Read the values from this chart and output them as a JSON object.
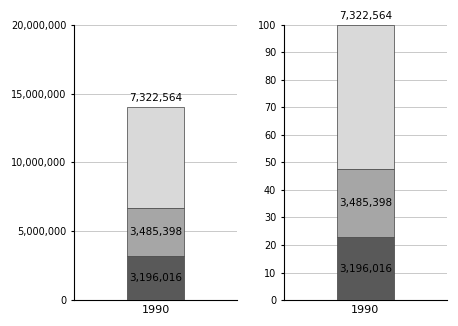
{
  "values": [
    3196016,
    3485398,
    7322564
  ],
  "colors": [
    "#595959",
    "#a6a6a6",
    "#d9d9d9"
  ],
  "left_ylim": [
    0,
    20000000
  ],
  "left_yticks": [
    0,
    5000000,
    10000000,
    15000000,
    20000000
  ],
  "right_ylim": [
    0,
    100
  ],
  "right_yticks": [
    0,
    10,
    20,
    30,
    40,
    50,
    60,
    70,
    80,
    90,
    100
  ],
  "xlabel": "1990",
  "bar_labels_inside": [
    "3,196,016",
    "3,485,398"
  ],
  "top_label": "7,322,564",
  "background_color": "#ffffff",
  "plot_bg_color": "#ffffff",
  "bar_width": 0.35,
  "font_size": 7.5,
  "label_color": "#000000",
  "grid_color": "#c0c0c0",
  "border_color": "#000000",
  "bar_edge_color": "#404040"
}
